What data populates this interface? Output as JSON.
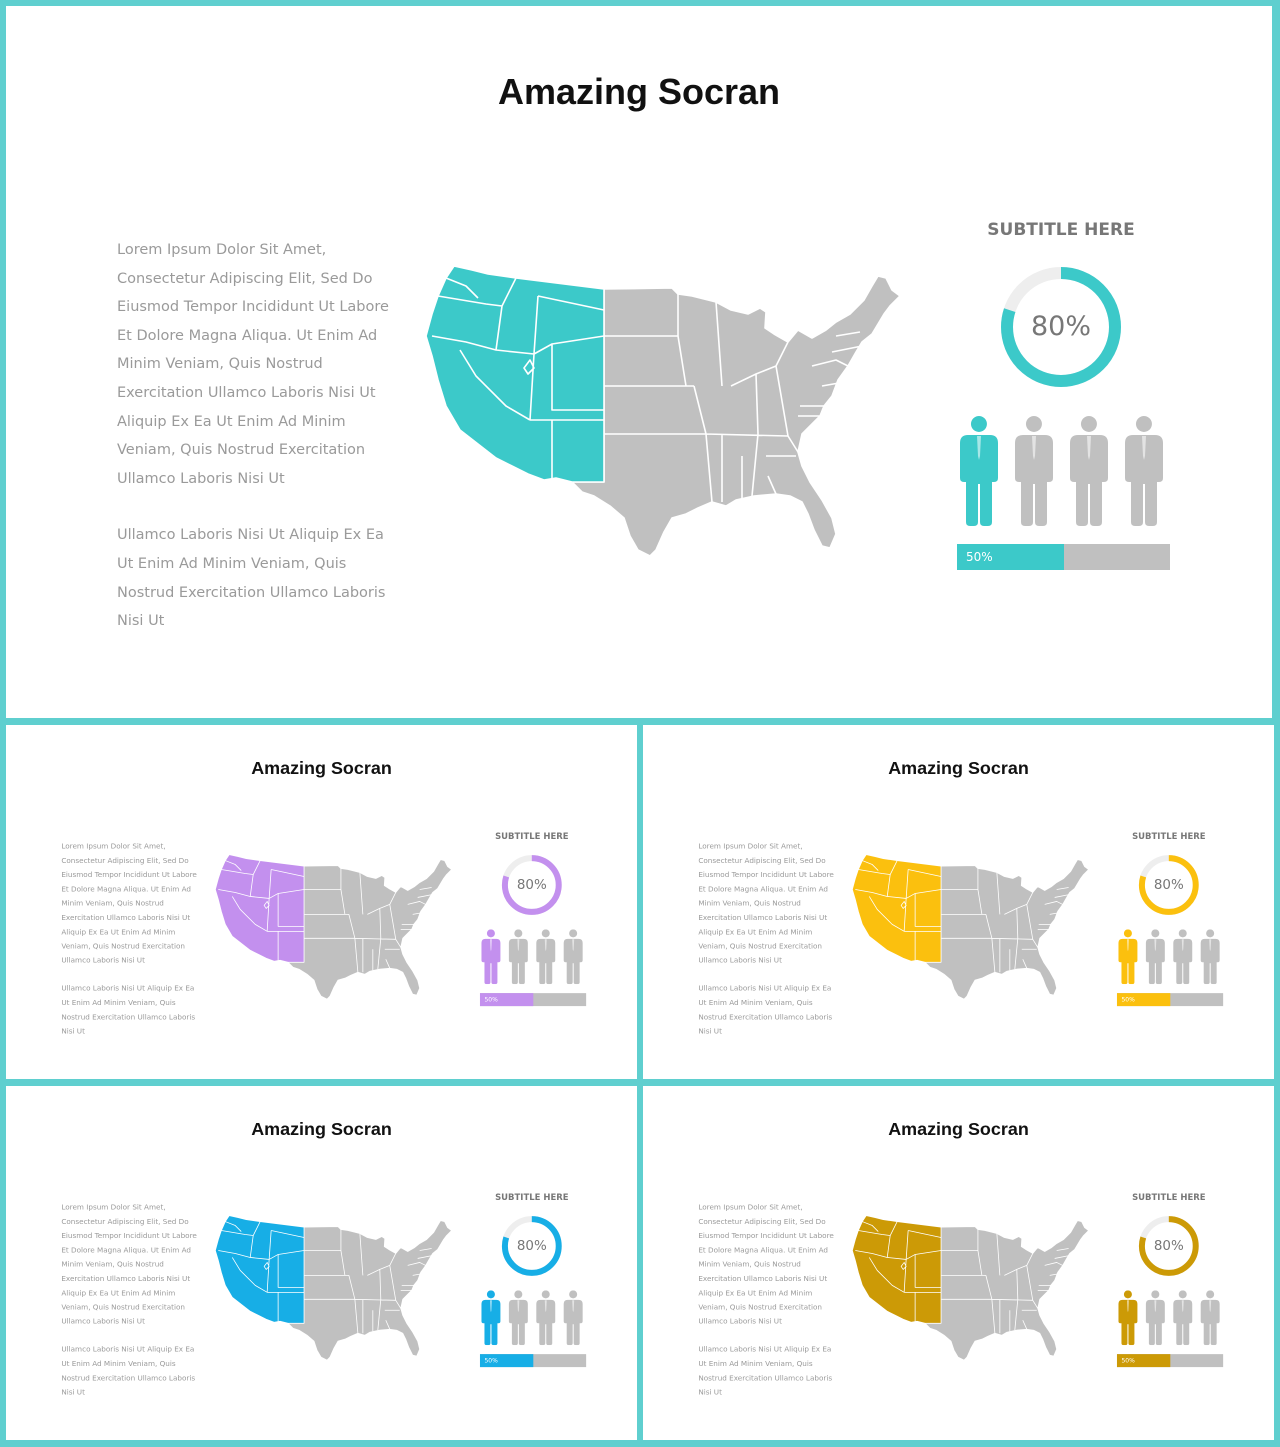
{
  "slides": [
    {
      "id": "main",
      "title": "Amazing Socran",
      "paragraph_1": "Lorem Ipsum Dolor Sit Amet, Consectetur Adipiscing Elit, Sed Do Eiusmod Tempor Incididunt Ut Labore Et Dolore Magna Aliqua. Ut Enim Ad Minim Veniam, Quis Nostrud Exercitation Ullamco Laboris Nisi Ut Aliquip Ex Ea Ut Enim Ad Minim Veniam, Quis Nostrud Exercitation Ullamco Laboris Nisi Ut",
      "paragraph_2": "Ullamco Laboris Nisi Ut Aliquip Ex Ea Ut Enim Ad Minim Veniam, Quis Nostrud Exercitation Ullamco Laboris Nisi Ut",
      "subtitle": "SUBTITLE HERE",
      "donut_label": "80%",
      "donut_value": 0.8,
      "bar_label": "50%",
      "bar_value": 0.5,
      "people_total": 4,
      "people_highlighted": 1,
      "accent_color": "#3cc9c9"
    },
    {
      "id": "purple",
      "title": "Amazing Socran",
      "paragraph_1": "Lorem Ipsum Dolor Sit Amet, Consectetur Adipiscing Elit, Sed Do Eiusmod Tempor Incididunt Ut Labore Et Dolore Magna Aliqua. Ut Enim Ad Minim Veniam, Quis Nostrud Exercitation Ullamco Laboris Nisi Ut Aliquip Ex Ea Ut Enim Ad Minim Veniam, Quis Nostrud Exercitation Ullamco Laboris Nisi Ut",
      "paragraph_2": "Ullamco Laboris Nisi Ut Aliquip Ex Ea Ut Enim Ad Minim Veniam, Quis Nostrud Exercitation Ullamco Laboris Nisi Ut",
      "subtitle": "SUBTITLE HERE",
      "donut_label": "80%",
      "donut_value": 0.8,
      "bar_label": "50%",
      "bar_value": 0.5,
      "people_total": 4,
      "people_highlighted": 1,
      "accent_color": "#c390ee"
    },
    {
      "id": "yellow",
      "title": "Amazing Socran",
      "paragraph_1": "Lorem Ipsum Dolor Sit Amet, Consectetur Adipiscing Elit, Sed Do Eiusmod Tempor Incididunt Ut Labore Et Dolore Magna Aliqua. Ut Enim Ad Minim Veniam, Quis Nostrud Exercitation Ullamco Laboris Nisi Ut Aliquip Ex Ea Ut Enim Ad Minim Veniam, Quis Nostrud Exercitation Ullamco Laboris Nisi Ut",
      "paragraph_2": "Ullamco Laboris Nisi Ut Aliquip Ex Ea Ut Enim Ad Minim Veniam, Quis Nostrud Exercitation Ullamco Laboris Nisi Ut",
      "subtitle": "SUBTITLE HERE",
      "donut_label": "80%",
      "donut_value": 0.8,
      "bar_label": "50%",
      "bar_value": 0.5,
      "people_total": 4,
      "people_highlighted": 1,
      "accent_color": "#fbc00e"
    },
    {
      "id": "blue",
      "title": "Amazing Socran",
      "paragraph_1": "Lorem Ipsum Dolor Sit Amet, Consectetur Adipiscing Elit, Sed Do Eiusmod Tempor Incididunt Ut Labore Et Dolore Magna Aliqua. Ut Enim Ad Minim Veniam, Quis Nostrud Exercitation Ullamco Laboris Nisi Ut Aliquip Ex Ea Ut Enim Ad Minim Veniam, Quis Nostrud Exercitation Ullamco Laboris Nisi Ut",
      "paragraph_2": "Ullamco Laboris Nisi Ut Aliquip Ex Ea Ut Enim Ad Minim Veniam, Quis Nostrud Exercitation Ullamco Laboris Nisi Ut",
      "subtitle": "SUBTITLE HERE",
      "donut_label": "80%",
      "donut_value": 0.8,
      "bar_label": "50%",
      "bar_value": 0.5,
      "people_total": 4,
      "people_highlighted": 1,
      "accent_color": "#17aee6"
    },
    {
      "id": "gold",
      "title": "Amazing Socran",
      "paragraph_1": "Lorem Ipsum Dolor Sit Amet, Consectetur Adipiscing Elit, Sed Do Eiusmod Tempor Incididunt Ut Labore Et Dolore Magna Aliqua. Ut Enim Ad Minim Veniam, Quis Nostrud Exercitation Ullamco Laboris Nisi Ut Aliquip Ex Ea Ut Enim Ad Minim Veniam, Quis Nostrud Exercitation Ullamco Laboris Nisi Ut",
      "paragraph_2": "Ullamco Laboris Nisi Ut Aliquip Ex Ea Ut Enim Ad Minim Veniam, Quis Nostrud Exercitation Ullamco Laboris Nisi Ut",
      "subtitle": "SUBTITLE HERE",
      "donut_label": "80%",
      "donut_value": 0.8,
      "bar_label": "50%",
      "bar_value": 0.5,
      "people_total": 4,
      "people_highlighted": 1,
      "accent_color": "#cc9a06"
    }
  ],
  "colors": {
    "frame": "#5fcfcf",
    "muted_gray": "#c0c0c0",
    "ring_track": "#eeeeee"
  },
  "icons": {
    "map": "usa-map-icon",
    "person": "person-icon"
  }
}
